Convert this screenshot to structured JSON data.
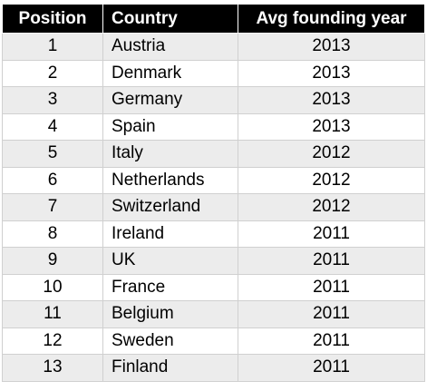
{
  "chart_data": {
    "type": "table",
    "columns": [
      "Position",
      "Country",
      "Avg founding year"
    ],
    "rows": [
      {
        "position": "1",
        "country": "Austria",
        "year": "2013"
      },
      {
        "position": "2",
        "country": "Denmark",
        "year": "2013"
      },
      {
        "position": "3",
        "country": "Germany",
        "year": "2013"
      },
      {
        "position": "4",
        "country": "Spain",
        "year": "2013"
      },
      {
        "position": "5",
        "country": "Italy",
        "year": "2012"
      },
      {
        "position": "6",
        "country": "Netherlands",
        "year": "2012"
      },
      {
        "position": "7",
        "country": "Switzerland",
        "year": "2012"
      },
      {
        "position": "8",
        "country": "Ireland",
        "year": "2011"
      },
      {
        "position": "9",
        "country": "UK",
        "year": "2011"
      },
      {
        "position": "10",
        "country": "France",
        "year": "2011"
      },
      {
        "position": "11",
        "country": "Belgium",
        "year": "2011"
      },
      {
        "position": "12",
        "country": "Sweden",
        "year": "2011"
      },
      {
        "position": "13",
        "country": "Finland",
        "year": "2011"
      }
    ]
  }
}
